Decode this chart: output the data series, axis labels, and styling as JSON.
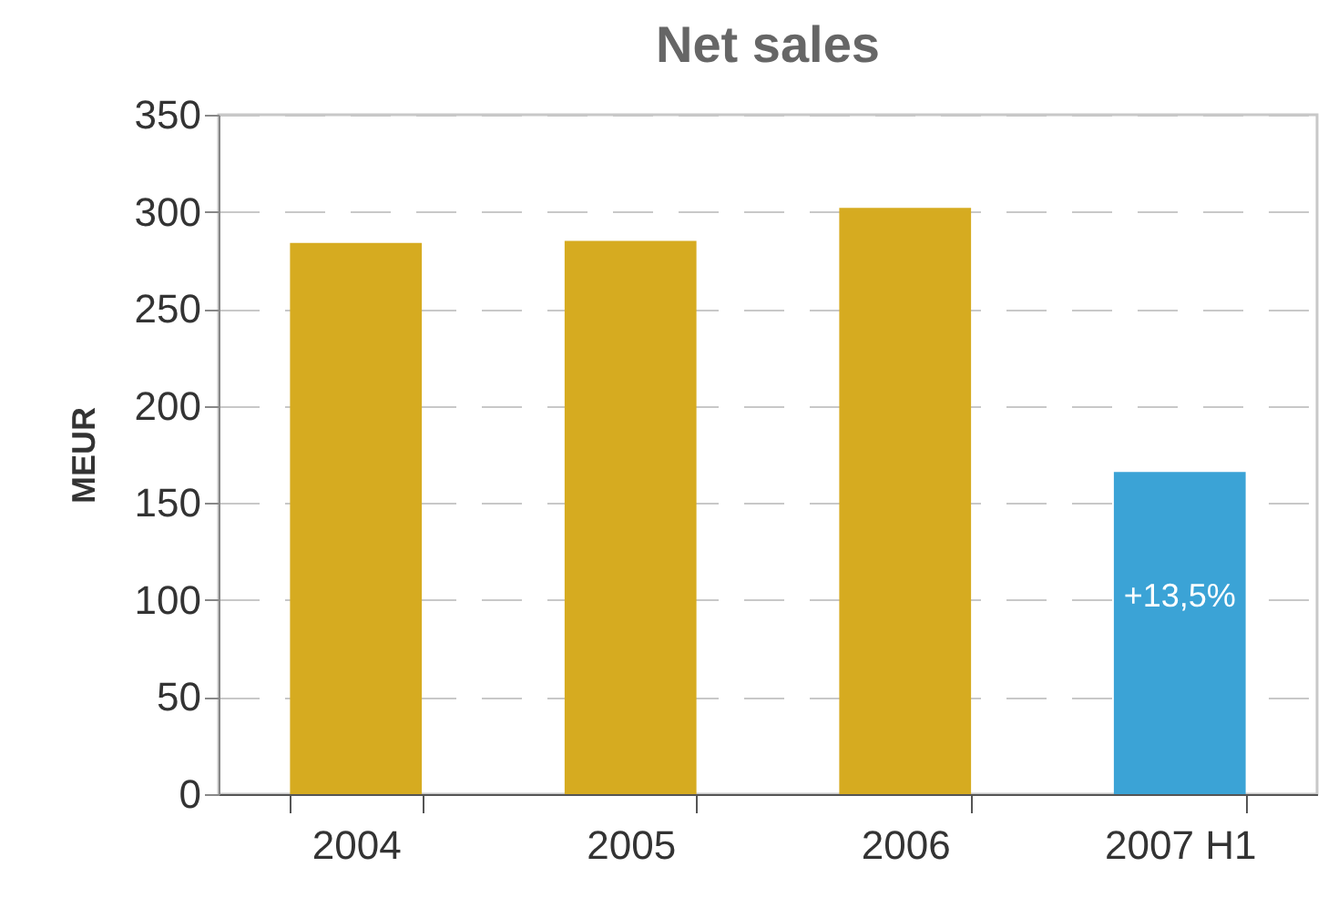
{
  "chart_data": {
    "type": "bar",
    "title": "Net sales",
    "ylabel": "MEUR",
    "categories": [
      "2004",
      "2005",
      "2006",
      "2007 H1"
    ],
    "values": [
      284,
      285,
      302,
      166
    ],
    "colors": [
      "#d6ab20",
      "#d6ab20",
      "#d6ab20",
      "#3ba3d6"
    ],
    "ylim": [
      0,
      350
    ],
    "yticks": [
      0,
      50,
      100,
      150,
      200,
      250,
      300,
      350
    ],
    "grid": "y",
    "annotations": [
      "+13,5%"
    ]
  }
}
